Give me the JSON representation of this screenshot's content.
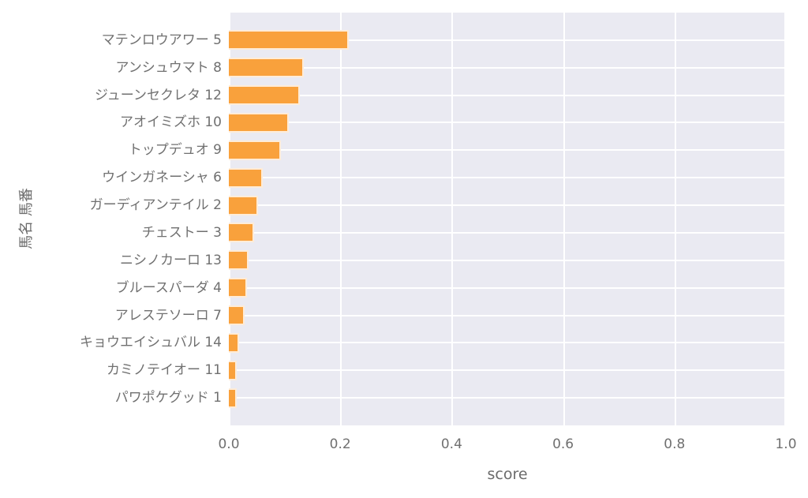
{
  "chart_data": {
    "type": "bar",
    "orientation": "horizontal",
    "title": "",
    "xlabel": "score",
    "ylabel": "馬名 馬番",
    "xlim": [
      0.0,
      1.0
    ],
    "x_ticks": [
      0.0,
      0.2,
      0.4,
      0.6,
      0.8,
      1.0
    ],
    "x_tick_labels": [
      "0.0",
      "0.2",
      "0.4",
      "0.6",
      "0.8",
      "1.0"
    ],
    "categories": [
      "マテンロウアワー 5",
      "アンシュウマト 8",
      "ジューンセクレタ 12",
      "アオイミズホ 10",
      "トップデュオ 9",
      "ウインガネーシャ 6",
      "ガーディアンテイル 2",
      "チェストー 3",
      "ニシノカーロ 13",
      "ブルースパーダ 4",
      "アレステソーロ 7",
      "キョウエイシュバル 14",
      "カミノテイオー 11",
      "パワポケグッド 1"
    ],
    "values": [
      0.216,
      0.134,
      0.127,
      0.108,
      0.094,
      0.061,
      0.052,
      0.045,
      0.036,
      0.032,
      0.029,
      0.019,
      0.014,
      0.014
    ],
    "grid": true,
    "legend_position": "none",
    "style": {
      "figure_background": "#ffffff",
      "plot_background": "#eaeaf2",
      "grid_color": "#ffffff",
      "bar_color": "#f9a13c",
      "bar_edge_color": "rgba(255,255,255,0.8)",
      "tick_label_color": "#707070",
      "axis_label_color": "#6b6b6b"
    }
  }
}
